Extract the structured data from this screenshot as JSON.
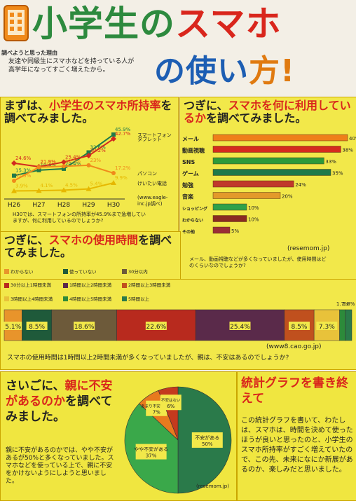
{
  "title": {
    "part1": "小学生の",
    "part2": "スマホ",
    "part3": "の使い",
    "part4": "方!",
    "reason_label": "調べようと思った理由",
    "reason_text": "友達や同級生にスマホなどを持っている人が高学年になってすごく増えたから。"
  },
  "section1": {
    "heading_prefix": "まずは、",
    "heading_red": "小学生のスマホ所持率",
    "heading_suffix": "を調べてみました。",
    "source": "(www.eagle-inc.jp調べ)",
    "note": "H30では、スマートフォンの所持率が45.9%まで急増していますが、何に利用しているのでしょうか?"
  },
  "section2": {
    "heading_prefix": "つぎに、",
    "heading_red": "スマホを何に利用しているか",
    "heading_suffix": "を調べてみました。",
    "source": "(resemom.jp)",
    "note": "メール、動画視聴などが多くなっていましたが、使用時間はどのくらいなのでしょうか?"
  },
  "section3": {
    "heading_prefix": "つぎに、",
    "heading_red": "スマホの使用時間",
    "heading_suffix": "を調べてみました。",
    "source": "(www8.cao.go.jp)",
    "note": "スマホの使用時間は1時間以上2時間未満が多くなっていましたが、親は、不安はあるのでしょうか?"
  },
  "section4": {
    "heading_prefix": "さいごに、",
    "heading_red": "親に不安があるのか",
    "heading_suffix": "を調べてみました。",
    "note": "親に不安があるのかでは、やや不安があるが50%と多くなっていました。スマホなどを使っている上で、親に不安をかけないようにしようと思いました。",
    "source": "(resemom.jp)"
  },
  "section5": {
    "heading": "統計グラフを書き終えて",
    "text": "この統計グラフを書いて、わたしは、スマホは、時間を決めて使ったほうが良いと思ったのと、小学生のスマホ所持率がすごく増えていたので、この先、未来になにか新展があるのか、楽しみだと思いました。"
  },
  "colors": {
    "smartphone": "#1f7a4a",
    "tablet": "#d22a1e",
    "pc": "#f08a1a",
    "kids_phone": "#e6b800",
    "panel": "#f2e84a"
  },
  "chart_data": [
    {
      "type": "line",
      "title": "小学生のスマホ所持率",
      "categories": [
        "H26",
        "H27",
        "H28",
        "H29",
        "H30"
      ],
      "unit": "%",
      "series": [
        {
          "name": "スマートフォン",
          "values": [
            15.3,
            19.4,
            20.4,
            32.6,
            45.9
          ]
        },
        {
          "name": "タブレット",
          "values": [
            24.6,
            21.9,
            25.4,
            30.2,
            42.7
          ]
        },
        {
          "name": "パソコン",
          "values": [
            11.5,
            21.6,
            22.3,
            23.0,
            17.2
          ]
        },
        {
          "name": "けいたい電話",
          "values": [
            3.9,
            4.1,
            4.5,
            5.4,
            9.9
          ]
        }
      ],
      "extra_labels": [
        "13.5%",
        "17.1%"
      ]
    },
    {
      "type": "bar",
      "title": "スマホを何に利用しているか",
      "categories": [
        "メール",
        "動画視聴",
        "SNS",
        "ゲーム",
        "勉強",
        "音楽",
        "ショッピング",
        "わからない",
        "その他"
      ],
      "values": [
        40,
        38,
        33,
        35,
        24,
        20,
        10,
        10,
        5
      ],
      "unit": "%"
    },
    {
      "type": "bar",
      "stacked": true,
      "title": "スマホの使用時間",
      "series": [
        {
          "name": "わからない",
          "value": 5.1
        },
        {
          "name": "使っていない",
          "value": 8.5
        },
        {
          "name": "30分以内",
          "value": 18.6
        },
        {
          "name": "30分以上1時間未満",
          "value": 22.6
        },
        {
          "name": "1時間以上2時間未満",
          "value": 25.4
        },
        {
          "name": "2時間以上3時間未満",
          "value": 8.5
        },
        {
          "name": "3時間以上4時間未満",
          "value": 7.3
        },
        {
          "name": "4時間以上5時間未満",
          "value": 1.7
        },
        {
          "name": "5時間以上",
          "value": 1.8
        }
      ],
      "unit": "%"
    },
    {
      "type": "pie",
      "title": "親に不安があるのか",
      "slices": [
        {
          "label": "不安がある",
          "value": 50
        },
        {
          "label": "やや不安がある",
          "value": 37
        },
        {
          "label": "あまり不安はない",
          "value": 7
        },
        {
          "label": "不安はない",
          "value": 6
        }
      ],
      "unit": "%"
    }
  ]
}
